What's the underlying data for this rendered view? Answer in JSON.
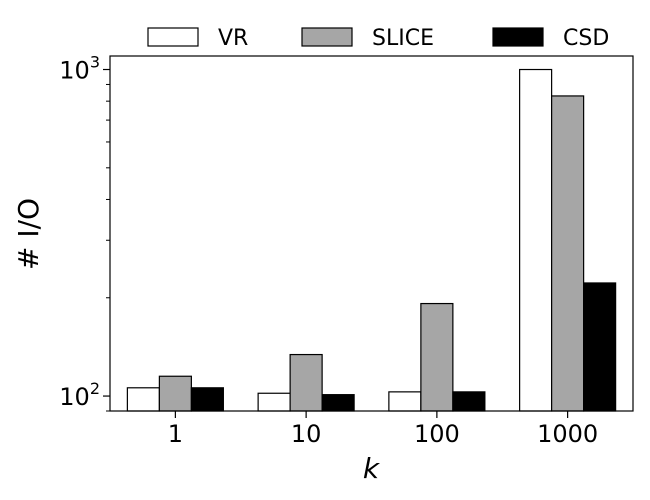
{
  "chart_data": {
    "type": "bar",
    "categories": [
      "1",
      "10",
      "100",
      "1000"
    ],
    "series": [
      {
        "name": "VR",
        "values": [
          106,
          102,
          103,
          1000
        ],
        "color": "#ffffff"
      },
      {
        "name": "SLICE",
        "values": [
          115,
          134,
          192,
          830
        ],
        "color": "#a6a6a6"
      },
      {
        "name": "CSD",
        "values": [
          106,
          101,
          103,
          222
        ],
        "color": "#000000"
      }
    ],
    "xlabel": "k",
    "ylabel": "# I/O",
    "yscale": "log",
    "ylim": [
      90,
      1100
    ],
    "yticks": [
      {
        "value": 100,
        "base": "10",
        "exp": "2"
      },
      {
        "value": 1000,
        "base": "10",
        "exp": "3"
      }
    ],
    "grid": false,
    "legend_position": "top, above plot"
  }
}
